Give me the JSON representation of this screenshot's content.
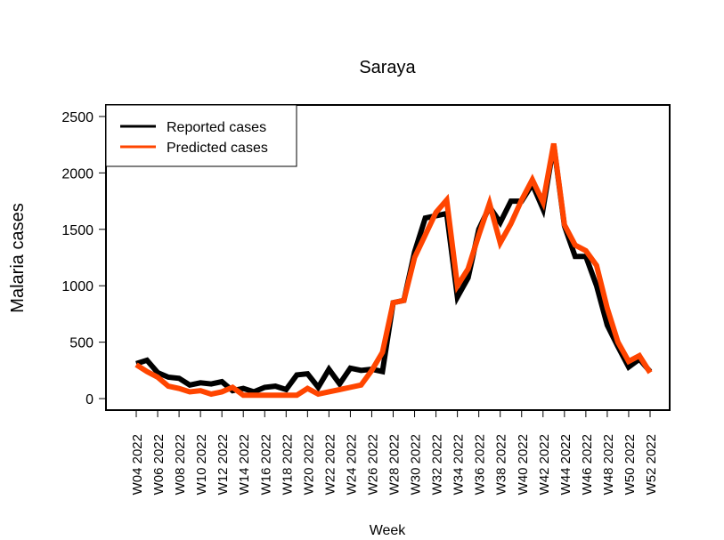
{
  "chart_data": {
    "type": "line",
    "title": "Saraya",
    "x_label": "Week",
    "y_label": "Malaria cases",
    "categories": [
      "W04 2022",
      null,
      "W06 2022",
      null,
      "W08 2022",
      null,
      "W10 2022",
      null,
      "W12 2022",
      null,
      "W14 2022",
      null,
      "W16 2022",
      null,
      "W18 2022",
      null,
      "W20 2022",
      null,
      "W22 2022",
      null,
      "W24 2022",
      null,
      "W26 2022",
      null,
      "W28 2022",
      null,
      "W30 2022",
      null,
      "W32 2022",
      null,
      "W34 2022",
      null,
      "W36 2022",
      null,
      "W38 2022",
      null,
      "W40 2022",
      null,
      "W42 2022",
      null,
      "W44 2022",
      null,
      "W46 2022",
      null,
      "W48 2022",
      null,
      "W50 2022",
      null,
      "W52 2022"
    ],
    "series": [
      {
        "name": "Reported cases",
        "color": "#000000",
        "values": [
          310,
          340,
          230,
          190,
          180,
          120,
          140,
          130,
          150,
          70,
          90,
          60,
          100,
          110,
          80,
          210,
          220,
          100,
          260,
          130,
          270,
          250,
          260,
          240,
          850,
          870,
          1300,
          1600,
          1620,
          1640,
          900,
          1070,
          1500,
          1700,
          1560,
          1750,
          1750,
          1900,
          1680,
          2250,
          1530,
          1260,
          1260,
          1000,
          650,
          460,
          280,
          350,
          240
        ]
      },
      {
        "name": "Predicted cases",
        "color": "#ff4500",
        "values": [
          300,
          240,
          190,
          110,
          90,
          60,
          70,
          40,
          60,
          100,
          30,
          30,
          30,
          30,
          30,
          30,
          90,
          40,
          60,
          80,
          100,
          120,
          250,
          410,
          850,
          870,
          1250,
          1450,
          1650,
          1760,
          1000,
          1150,
          1450,
          1730,
          1380,
          1550,
          1760,
          1940,
          1740,
          2260,
          1540,
          1360,
          1310,
          1180,
          800,
          500,
          330,
          380,
          230
        ]
      }
    ],
    "ylim": [
      -102,
      2602
    ],
    "yticks": [
      0,
      500,
      1000,
      1500,
      2000,
      2500
    ],
    "legend": "top-left"
  }
}
